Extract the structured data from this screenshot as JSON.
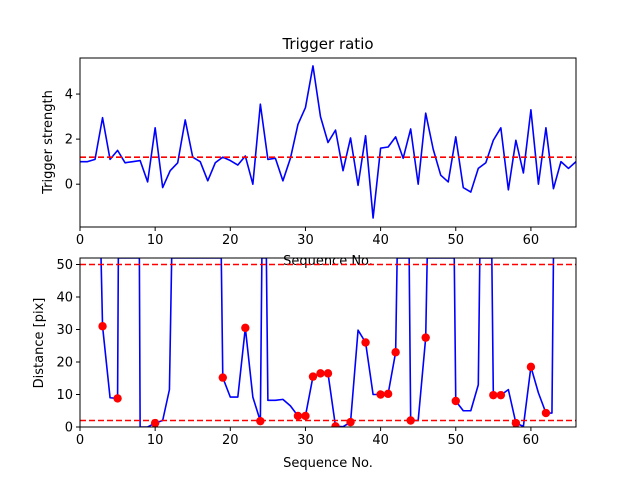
{
  "chart_data": [
    {
      "type": "line",
      "title": "Trigger ratio",
      "xlabel": "Sequence No.",
      "ylabel": "Trigger strength",
      "xlim": [
        0,
        66
      ],
      "ylim": [
        -1.9,
        5.6
      ],
      "xticks": [
        0,
        10,
        20,
        30,
        40,
        50,
        60
      ],
      "yticks": [
        0,
        2,
        4
      ],
      "grid": false,
      "series": [
        {
          "color": "#0000ff",
          "x": [
            0,
            1,
            2,
            3,
            4,
            5,
            6,
            7,
            8,
            9,
            10,
            11,
            12,
            13,
            14,
            15,
            16,
            17,
            18,
            19,
            20,
            21,
            22,
            23,
            24,
            25,
            26,
            27,
            28,
            29,
            30,
            31,
            32,
            33,
            34,
            35,
            36,
            37,
            38,
            39,
            40,
            41,
            42,
            43,
            44,
            45,
            46,
            47,
            48,
            49,
            50,
            51,
            52,
            53,
            54,
            55,
            56,
            57,
            58,
            59,
            60,
            61,
            62,
            63,
            64,
            65,
            66
          ],
          "y": [
            1.0,
            1.0,
            1.1,
            2.95,
            1.1,
            1.5,
            0.95,
            1.0,
            1.05,
            0.1,
            2.5,
            -0.15,
            0.6,
            0.95,
            2.85,
            1.2,
            1.0,
            0.15,
            0.95,
            1.2,
            1.05,
            0.85,
            1.25,
            0.0,
            3.55,
            1.1,
            1.15,
            0.15,
            1.15,
            2.65,
            3.4,
            5.25,
            3.0,
            1.85,
            2.4,
            0.6,
            2.05,
            -0.05,
            2.15,
            -1.5,
            1.6,
            1.65,
            2.1,
            1.15,
            2.45,
            0.0,
            3.15,
            1.55,
            0.4,
            0.1,
            2.1,
            -0.15,
            -0.35,
            0.7,
            0.95,
            1.95,
            2.5,
            -0.25,
            1.95,
            0.5,
            3.3,
            0.0,
            2.5,
            -0.2,
            1.0,
            0.7,
            1.0
          ]
        }
      ],
      "hlines": [
        {
          "y": 1.2,
          "color": "#ff0000",
          "style": "dashed"
        }
      ]
    },
    {
      "type": "line",
      "title": "",
      "xlabel": "Sequence No.",
      "ylabel": "Distance [pix]",
      "xlim": [
        0,
        66
      ],
      "ylim": [
        0,
        52
      ],
      "xticks": [
        0,
        10,
        20,
        30,
        40,
        50,
        60
      ],
      "yticks": [
        0,
        10,
        20,
        30,
        40,
        50
      ],
      "grid": false,
      "series": [
        {
          "color": "#0000ff",
          "x": [
            2.8,
            3,
            4,
            5,
            5.1,
            7.9,
            8,
            9,
            10,
            11,
            11.9,
            12.2,
            18.8,
            19,
            20,
            21,
            22,
            23,
            24,
            24.2,
            24.8,
            25,
            26,
            27,
            28,
            29,
            30,
            31,
            32,
            33,
            34,
            35,
            36,
            37,
            38,
            39,
            40,
            41,
            42,
            42.2,
            43.8,
            44,
            45,
            46,
            46.2,
            49.8,
            50,
            51,
            52,
            53,
            53.2,
            54.8,
            55,
            56,
            57,
            58,
            59,
            60,
            61,
            62,
            62.8,
            63
          ],
          "y": [
            52,
            31,
            9,
            8.8,
            52,
            52,
            0,
            0,
            1.2,
            2,
            11.5,
            52,
            52,
            15.2,
            9.2,
            9.2,
            30.5,
            9.2,
            1.8,
            52,
            52,
            8.2,
            8.2,
            8.5,
            6.5,
            3.4,
            3.4,
            15.5,
            16.5,
            16.5,
            0.2,
            0.1,
            1.5,
            29.8,
            26,
            10,
            10,
            10.2,
            23,
            52,
            52,
            2,
            2,
            27.5,
            52,
            52,
            8,
            5,
            5,
            13,
            52,
            52,
            9.8,
            9.8,
            11.5,
            1.2,
            0.2,
            18.5,
            10.5,
            4.3,
            4.3,
            52
          ]
        }
      ],
      "markers": {
        "color": "#ff0000",
        "x": [
          3,
          5,
          10,
          19,
          22,
          24,
          29,
          30,
          31,
          32,
          33,
          34,
          36,
          38,
          40,
          41,
          42,
          44,
          46,
          50,
          55,
          56,
          58,
          60,
          62
        ],
        "y": [
          31,
          8.8,
          1.2,
          15.2,
          30.5,
          1.8,
          3.4,
          3.4,
          15.5,
          16.5,
          16.5,
          0.2,
          1.5,
          26,
          10,
          10.2,
          23,
          2,
          27.5,
          8,
          9.8,
          9.8,
          1.2,
          18.5,
          4.3
        ]
      },
      "hlines": [
        {
          "y": 50,
          "color": "#ff0000",
          "style": "dashed"
        },
        {
          "y": 2,
          "color": "#ff0000",
          "style": "dashed"
        }
      ]
    }
  ]
}
